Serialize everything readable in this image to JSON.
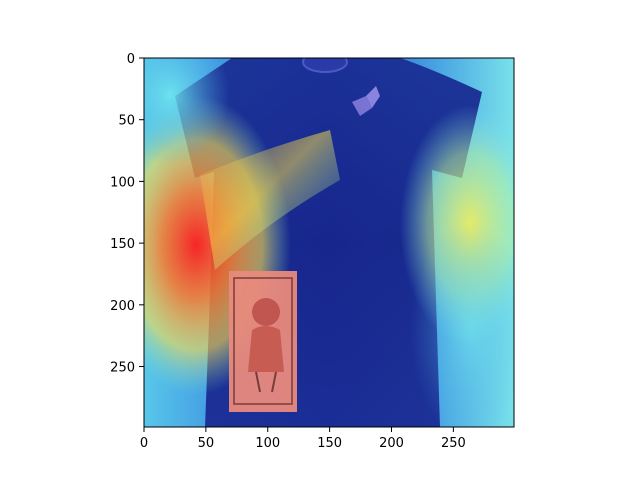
{
  "figure": {
    "image_description_name": "heatmap-overlay-tshirt",
    "x_ticks": [
      "0",
      "50",
      "100",
      "150",
      "200",
      "250"
    ],
    "y_ticks": [
      "0",
      "50",
      "100",
      "150",
      "200",
      "250"
    ],
    "x_tick_values": [
      0,
      50,
      100,
      150,
      200,
      250
    ],
    "y_tick_values": [
      0,
      50,
      100,
      150,
      200,
      250
    ],
    "xlim": [
      0,
      299
    ],
    "ylim": [
      299,
      0
    ],
    "colormap": "jet",
    "colors": {
      "shirt": "#1b2a8a",
      "hot": "#ff3b2f",
      "warm": "#ffd84a",
      "cool": "#7ee8ea"
    }
  }
}
